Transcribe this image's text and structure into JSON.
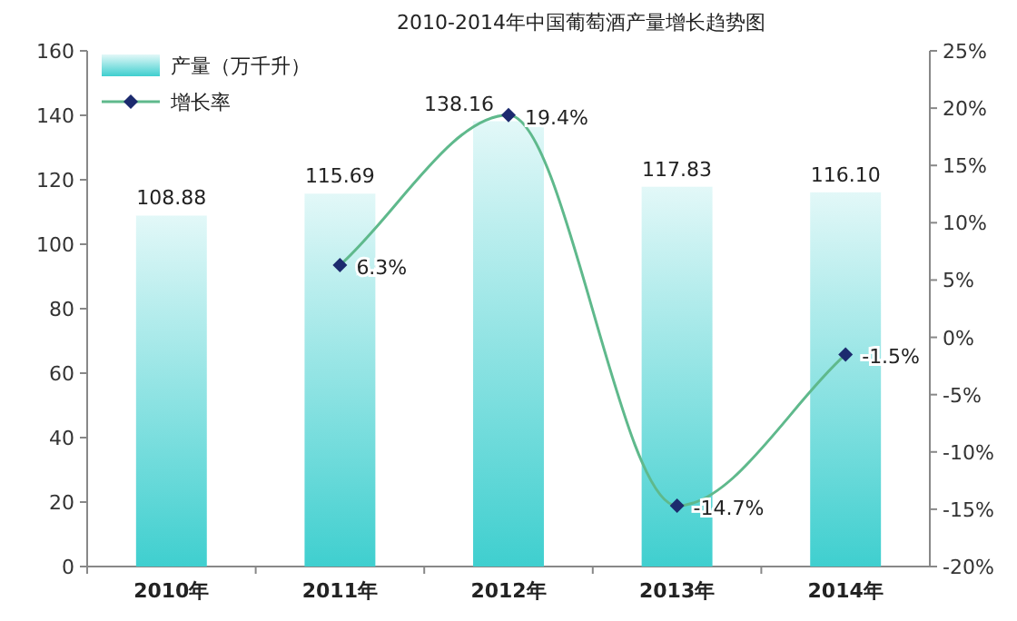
{
  "chart_data": {
    "type": "bar",
    "title": "2010-2014年中国葡萄酒产量增长趋势图",
    "categories": [
      "2010年",
      "2011年",
      "2012年",
      "2013年",
      "2014年"
    ],
    "series": [
      {
        "name": "产量（万千升）",
        "color": "#3fcfcf",
        "values": [
          108.88,
          115.69,
          138.16,
          117.83,
          116.1
        ],
        "value_labels": [
          "108.88",
          "115.69",
          "138.16",
          "117.83",
          "116.10"
        ]
      },
      {
        "name": "增长率",
        "type": "line",
        "axis": "y2",
        "color": "#5fb98c",
        "colors": [
          null,
          "#1c2a6e",
          "#1c2a6e",
          "#1c2a6e",
          "#1c2a6e"
        ],
        "values": [
          null,
          6.3,
          19.4,
          -14.7,
          -1.5
        ],
        "value_labels": [
          null,
          "6.3%",
          "19.4%",
          "-14.7%",
          "-1.5%"
        ],
        "marker": "diamond"
      }
    ],
    "ylim": [
      0,
      160
    ],
    "yticks": [
      0,
      20,
      40,
      60,
      80,
      100,
      120,
      140,
      160
    ],
    "y2lim": [
      -20,
      25
    ],
    "y2ticks": [
      {
        "value": -20,
        "label": "-20%"
      },
      {
        "value": -15,
        "label": "-15%"
      },
      {
        "value": -10,
        "label": "-10%"
      },
      {
        "value": -5,
        "label": "-5%"
      },
      {
        "value": 0,
        "label": "0%"
      },
      {
        "value": 5,
        "label": "5%"
      },
      {
        "value": 10,
        "label": "10%"
      },
      {
        "value": 15,
        "label": "15%"
      },
      {
        "value": 20,
        "label": "20%"
      },
      {
        "value": 25,
        "label": "25%"
      }
    ],
    "grid": false,
    "legend": "top left"
  }
}
